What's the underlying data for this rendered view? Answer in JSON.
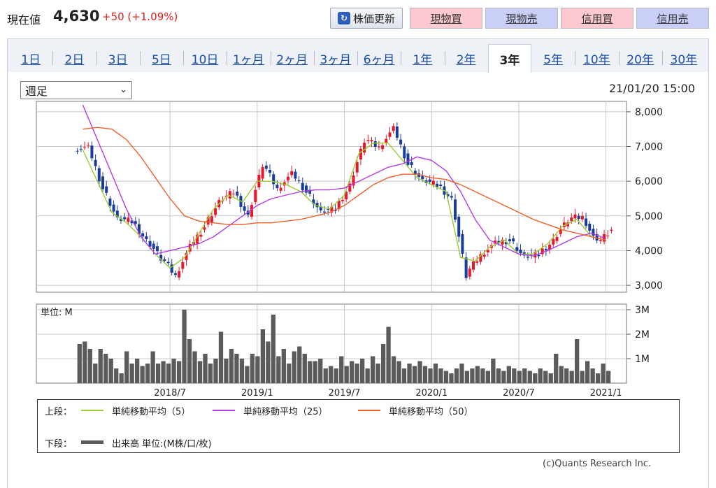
{
  "header": {
    "price_label": "現在値",
    "price_value": "4,630",
    "price_change": "+50 (+1.09%)",
    "refresh_label": "株価更新",
    "buttons": [
      "現物買",
      "現物売",
      "信用買",
      "信用売"
    ]
  },
  "tabs": [
    "1日",
    "2日",
    "3日",
    "5日",
    "10日",
    "1ヶ月",
    "2ヶ月",
    "3ヶ月",
    "6ヶ月",
    "1年",
    "2年",
    "3年",
    "5年",
    "10年",
    "20年",
    "30年"
  ],
  "active_tab": "3年",
  "period_select": "週足",
  "timestamp": "21/01/20 15:00",
  "legend": {
    "upper_label": "上段：",
    "ma5": "単純移動平均（5）",
    "ma25": "単純移動平均（25）",
    "ma50": "単純移動平均（50）",
    "lower_label": "下段：",
    "volume": "出来高 単位:(M株/口/枚)"
  },
  "credit": "(c)Quants Research Inc.",
  "colors": {
    "up": "#e8182c",
    "down": "#1a3c9c",
    "ma5": "#9acd32",
    "ma25": "#b23be8",
    "ma50": "#f0602a",
    "volume": "#5b5b5b"
  },
  "chart_data": [
    {
      "type": "line",
      "title": "",
      "y_ticks": [
        "8,000",
        "7,000",
        "6,000",
        "5,000",
        "4,000",
        "3,000"
      ],
      "ylim": [
        2800,
        8300
      ],
      "x_ticks": [
        "2018/7",
        "2019/1",
        "2019/7",
        "2020/1",
        "2020/7",
        "2021/1"
      ],
      "x_range": [
        "2018/01",
        "2021/01"
      ],
      "close_monthly": [
        {
          "x": "2018/01",
          "y": 6950
        },
        {
          "x": "2018/02",
          "y": 5800
        },
        {
          "x": "2018/03",
          "y": 4900
        },
        {
          "x": "2018/04",
          "y": 4850
        },
        {
          "x": "2018/05",
          "y": 4300
        },
        {
          "x": "2018/06",
          "y": 3800
        },
        {
          "x": "2018/07",
          "y": 3300
        },
        {
          "x": "2018/08",
          "y": 4100
        },
        {
          "x": "2018/09",
          "y": 4700
        },
        {
          "x": "2018/10",
          "y": 5400
        },
        {
          "x": "2018/11",
          "y": 5700
        },
        {
          "x": "2018/12",
          "y": 5000
        },
        {
          "x": "2019/01",
          "y": 6500
        },
        {
          "x": "2019/02",
          "y": 5800
        },
        {
          "x": "2019/03",
          "y": 6200
        },
        {
          "x": "2019/04",
          "y": 5700
        },
        {
          "x": "2019/05",
          "y": 5100
        },
        {
          "x": "2019/06",
          "y": 5200
        },
        {
          "x": "2019/07",
          "y": 5900
        },
        {
          "x": "2019/08",
          "y": 7200
        },
        {
          "x": "2019/09",
          "y": 7000
        },
        {
          "x": "2019/10",
          "y": 7500
        },
        {
          "x": "2019/11",
          "y": 6500
        },
        {
          "x": "2019/12",
          "y": 6000
        },
        {
          "x": "2020/01",
          "y": 5900
        },
        {
          "x": "2020/02",
          "y": 5500
        },
        {
          "x": "2020/03",
          "y": 3300
        },
        {
          "x": "2020/04",
          "y": 3900
        },
        {
          "x": "2020/05",
          "y": 4200
        },
        {
          "x": "2020/06",
          "y": 4300
        },
        {
          "x": "2020/07",
          "y": 3800
        },
        {
          "x": "2020/08",
          "y": 3900
        },
        {
          "x": "2020/09",
          "y": 4300
        },
        {
          "x": "2020/10",
          "y": 4900
        },
        {
          "x": "2020/11",
          "y": 5000
        },
        {
          "x": "2020/12",
          "y": 4200
        },
        {
          "x": "2021/01",
          "y": 4630
        }
      ],
      "series": [
        {
          "name": "単純移動平均（5）",
          "values": [
            6900,
            6000,
            5100,
            4800,
            4400,
            3900,
            3500,
            3800,
            4500,
            5200,
            5600,
            5400,
            6000,
            6000,
            5900,
            5700,
            5300,
            5200,
            5600,
            6800,
            7100,
            7100,
            6600,
            6100,
            5900,
            5700,
            3800,
            3700,
            4100,
            4300,
            3900,
            3900,
            4200,
            4700,
            4900,
            4400,
            4300
          ]
        },
        {
          "name": "単純移動平均（25）",
          "values": [
            8200,
            7200,
            6200,
            5200,
            4400,
            3900,
            4000,
            4100,
            4200,
            4400,
            4700,
            5000,
            5300,
            5500,
            5600,
            5700,
            5750,
            5750,
            5800,
            6000,
            6200,
            6400,
            6500,
            6700,
            6600,
            6300,
            5700,
            4900,
            4300,
            4100,
            3900,
            3850,
            4000,
            4200,
            4400,
            4500,
            4350
          ]
        },
        {
          "name": "単純移動平均（50）",
          "values": [
            7500,
            7550,
            7500,
            7200,
            6700,
            6100,
            5500,
            5000,
            4850,
            4800,
            4750,
            4750,
            4800,
            4800,
            4850,
            4900,
            5000,
            5100,
            5300,
            5600,
            5900,
            6100,
            6200,
            6200,
            6100,
            6050,
            5900,
            5700,
            5500,
            5300,
            5100,
            4900,
            4750,
            4600,
            4500,
            4400,
            4300
          ]
        }
      ]
    },
    {
      "type": "bar",
      "title": "",
      "ylabel": "単位: M",
      "y_ticks": [
        "3M",
        "2M",
        "1M"
      ],
      "ylim": [
        0,
        3
      ],
      "x_ticks": [
        "2018/7",
        "2019/1",
        "2019/7",
        "2020/1",
        "2020/7",
        "2021/1"
      ],
      "values": [
        1.6,
        1.7,
        1.4,
        0.8,
        1.4,
        1.2,
        1.0,
        0.6,
        0.4,
        1.3,
        0.8,
        1.0,
        0.7,
        0.8,
        1.3,
        0.8,
        0.9,
        0.8,
        1.0,
        0.9,
        3.0,
        1.8,
        1.3,
        0.9,
        1.2,
        0.8,
        1.0,
        2.1,
        1.0,
        1.4,
        1.2,
        1.0,
        0.7,
        1.2,
        1.1,
        2.2,
        1.7,
        2.8,
        1.1,
        1.4,
        0.8,
        1.3,
        1.5,
        1.2,
        0.9,
        0.9,
        1.0,
        0.6,
        0.7,
        0.6,
        1.1,
        0.7,
        0.9,
        0.8,
        1.0,
        0.6,
        1.1,
        0.8,
        1.6,
        2.3,
        1.1,
        0.9,
        0.6,
        0.8,
        0.7,
        0.9,
        0.7,
        0.6,
        0.8,
        0.6,
        0.5,
        0.4,
        0.6,
        0.8,
        0.5,
        0.6,
        0.7,
        0.6,
        0.5,
        1.0,
        0.6,
        0.5,
        0.7,
        0.6,
        0.5,
        0.6,
        0.5,
        0.4,
        0.6,
        0.5,
        0.4,
        1.2,
        0.7,
        0.6,
        0.5,
        1.8,
        0.5,
        0.9,
        0.6,
        0.4,
        0.8,
        0.5
      ]
    }
  ]
}
